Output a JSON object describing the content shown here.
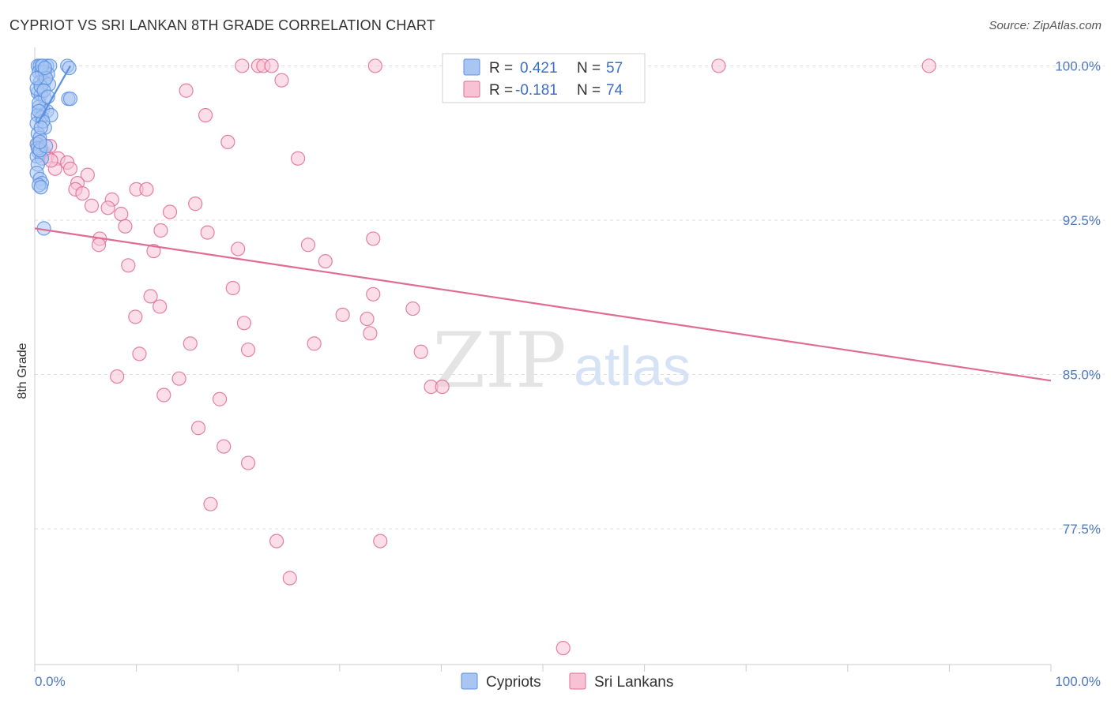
{
  "title": "CYPRIOT VS SRI LANKAN 8TH GRADE CORRELATION CHART",
  "source": "Source: ZipAtlas.com",
  "watermark": {
    "zip": "ZIP",
    "atlas": "atlas"
  },
  "chart_data": {
    "type": "scatter",
    "ylabel": "8th Grade",
    "xlim": [
      0,
      100
    ],
    "ylim": [
      70.9,
      100.9
    ],
    "x_tick_labels": [
      {
        "v": 0,
        "label": "0.0%"
      },
      {
        "v": 100,
        "label": "100.0%"
      }
    ],
    "y_ticks": [
      {
        "v": 100,
        "label": "100.0%"
      },
      {
        "v": 92.5,
        "label": "92.5%"
      },
      {
        "v": 85,
        "label": "85.0%"
      },
      {
        "v": 77.5,
        "label": "77.5%"
      }
    ],
    "legend": [
      {
        "r_label": "R =",
        "r": "0.421",
        "n_label": "N =",
        "n": "57"
      },
      {
        "r_label": "R =",
        "r": "-0.181",
        "n_label": "N =",
        "n": "74"
      }
    ],
    "series": [
      {
        "name": "Cypriots",
        "color": "#5b8fe0",
        "fill": "#a9c6f2",
        "trend": {
          "x0": 0.3,
          "y0": 97.2,
          "x1": 3.5,
          "y1": 100.0
        },
        "points": [
          [
            0.3,
            100.0
          ],
          [
            0.5,
            100.0
          ],
          [
            0.8,
            100.0
          ],
          [
            1.2,
            100.0
          ],
          [
            1.5,
            100.0
          ],
          [
            3.2,
            100.0
          ],
          [
            3.4,
            99.9
          ],
          [
            0.4,
            99.7
          ],
          [
            0.7,
            99.7
          ],
          [
            1.0,
            99.7
          ],
          [
            1.3,
            99.6
          ],
          [
            0.5,
            99.2
          ],
          [
            0.9,
            99.2
          ],
          [
            1.4,
            99.1
          ],
          [
            0.3,
            98.7
          ],
          [
            0.6,
            98.6
          ],
          [
            1.0,
            98.4
          ],
          [
            3.3,
            98.4
          ],
          [
            3.5,
            98.4
          ],
          [
            0.4,
            98.0
          ],
          [
            0.8,
            97.9
          ],
          [
            1.2,
            97.8
          ],
          [
            0.3,
            97.6
          ],
          [
            0.7,
            97.5
          ],
          [
            1.6,
            97.6
          ],
          [
            0.2,
            97.2
          ],
          [
            1.0,
            97.0
          ],
          [
            0.3,
            96.7
          ],
          [
            0.5,
            96.5
          ],
          [
            0.2,
            96.2
          ],
          [
            0.6,
            96.0
          ],
          [
            0.4,
            95.8
          ],
          [
            0.2,
            95.6
          ],
          [
            0.7,
            95.5
          ],
          [
            0.3,
            95.2
          ],
          [
            0.2,
            94.8
          ],
          [
            0.5,
            94.5
          ],
          [
            0.7,
            94.3
          ],
          [
            0.4,
            94.2
          ],
          [
            0.6,
            94.1
          ],
          [
            0.9,
            92.1
          ],
          [
            0.2,
            98.9
          ],
          [
            0.6,
            99.0
          ],
          [
            1.1,
            99.4
          ],
          [
            0.4,
            98.2
          ],
          [
            0.8,
            97.3
          ],
          [
            0.3,
            96.0
          ],
          [
            0.5,
            95.9
          ],
          [
            1.1,
            96.1
          ],
          [
            0.6,
            97.0
          ],
          [
            0.9,
            98.8
          ],
          [
            1.3,
            98.5
          ],
          [
            0.2,
            99.4
          ],
          [
            0.7,
            100.0
          ],
          [
            1.0,
            99.9
          ],
          [
            0.4,
            97.8
          ],
          [
            0.5,
            96.3
          ]
        ]
      },
      {
        "name": "Sri Lankans",
        "color": "#e06b94",
        "fill": "#f7c3d4",
        "trend": {
          "x0": 0,
          "y0": 92.1,
          "x1": 100,
          "y1": 84.7
        },
        "points": [
          [
            0.3,
            96.2
          ],
          [
            0.6,
            96.0
          ],
          [
            0.9,
            95.8
          ],
          [
            1.2,
            95.6
          ],
          [
            1.5,
            96.1
          ],
          [
            2.3,
            95.5
          ],
          [
            2.0,
            95.0
          ],
          [
            1.6,
            95.4
          ],
          [
            3.2,
            95.3
          ],
          [
            3.5,
            95.0
          ],
          [
            5.2,
            94.7
          ],
          [
            4.2,
            94.3
          ],
          [
            4.0,
            94.0
          ],
          [
            4.7,
            93.8
          ],
          [
            7.6,
            93.5
          ],
          [
            7.2,
            93.1
          ],
          [
            5.6,
            93.2
          ],
          [
            8.5,
            92.8
          ],
          [
            10.0,
            94.0
          ],
          [
            11.0,
            94.0
          ],
          [
            13.3,
            92.9
          ],
          [
            15.8,
            93.3
          ],
          [
            8.9,
            92.2
          ],
          [
            12.4,
            92.0
          ],
          [
            17.0,
            91.9
          ],
          [
            6.4,
            91.6
          ],
          [
            6.3,
            91.3
          ],
          [
            11.7,
            91.0
          ],
          [
            20.0,
            91.1
          ],
          [
            26.9,
            91.3
          ],
          [
            33.3,
            91.6
          ],
          [
            28.6,
            90.5
          ],
          [
            9.2,
            90.3
          ],
          [
            19.5,
            89.2
          ],
          [
            11.4,
            88.8
          ],
          [
            12.3,
            88.3
          ],
          [
            33.3,
            88.9
          ],
          [
            37.2,
            88.2
          ],
          [
            30.3,
            87.9
          ],
          [
            32.7,
            87.7
          ],
          [
            9.9,
            87.8
          ],
          [
            20.6,
            87.5
          ],
          [
            33.0,
            87.0
          ],
          [
            10.3,
            86.0
          ],
          [
            15.3,
            86.5
          ],
          [
            21.0,
            86.2
          ],
          [
            27.5,
            86.5
          ],
          [
            38.0,
            86.1
          ],
          [
            8.1,
            84.9
          ],
          [
            14.2,
            84.8
          ],
          [
            39.0,
            84.4
          ],
          [
            40.1,
            84.4
          ],
          [
            12.7,
            84.0
          ],
          [
            18.2,
            83.8
          ],
          [
            16.1,
            82.4
          ],
          [
            18.6,
            81.5
          ],
          [
            21.0,
            80.7
          ],
          [
            17.3,
            78.7
          ],
          [
            23.8,
            76.9
          ],
          [
            34.0,
            76.9
          ],
          [
            25.1,
            75.1
          ],
          [
            52.0,
            71.7
          ],
          [
            20.4,
            100.0
          ],
          [
            22.0,
            100.0
          ],
          [
            22.5,
            100.0
          ],
          [
            23.3,
            100.0
          ],
          [
            33.5,
            100.0
          ],
          [
            67.3,
            100.0
          ],
          [
            88.0,
            100.0
          ],
          [
            14.9,
            98.8
          ],
          [
            16.8,
            97.6
          ],
          [
            24.3,
            99.3
          ],
          [
            19.0,
            96.3
          ],
          [
            25.9,
            95.5
          ]
        ]
      }
    ],
    "bottom_legend": [
      "Cypriots",
      "Sri Lankans"
    ]
  }
}
